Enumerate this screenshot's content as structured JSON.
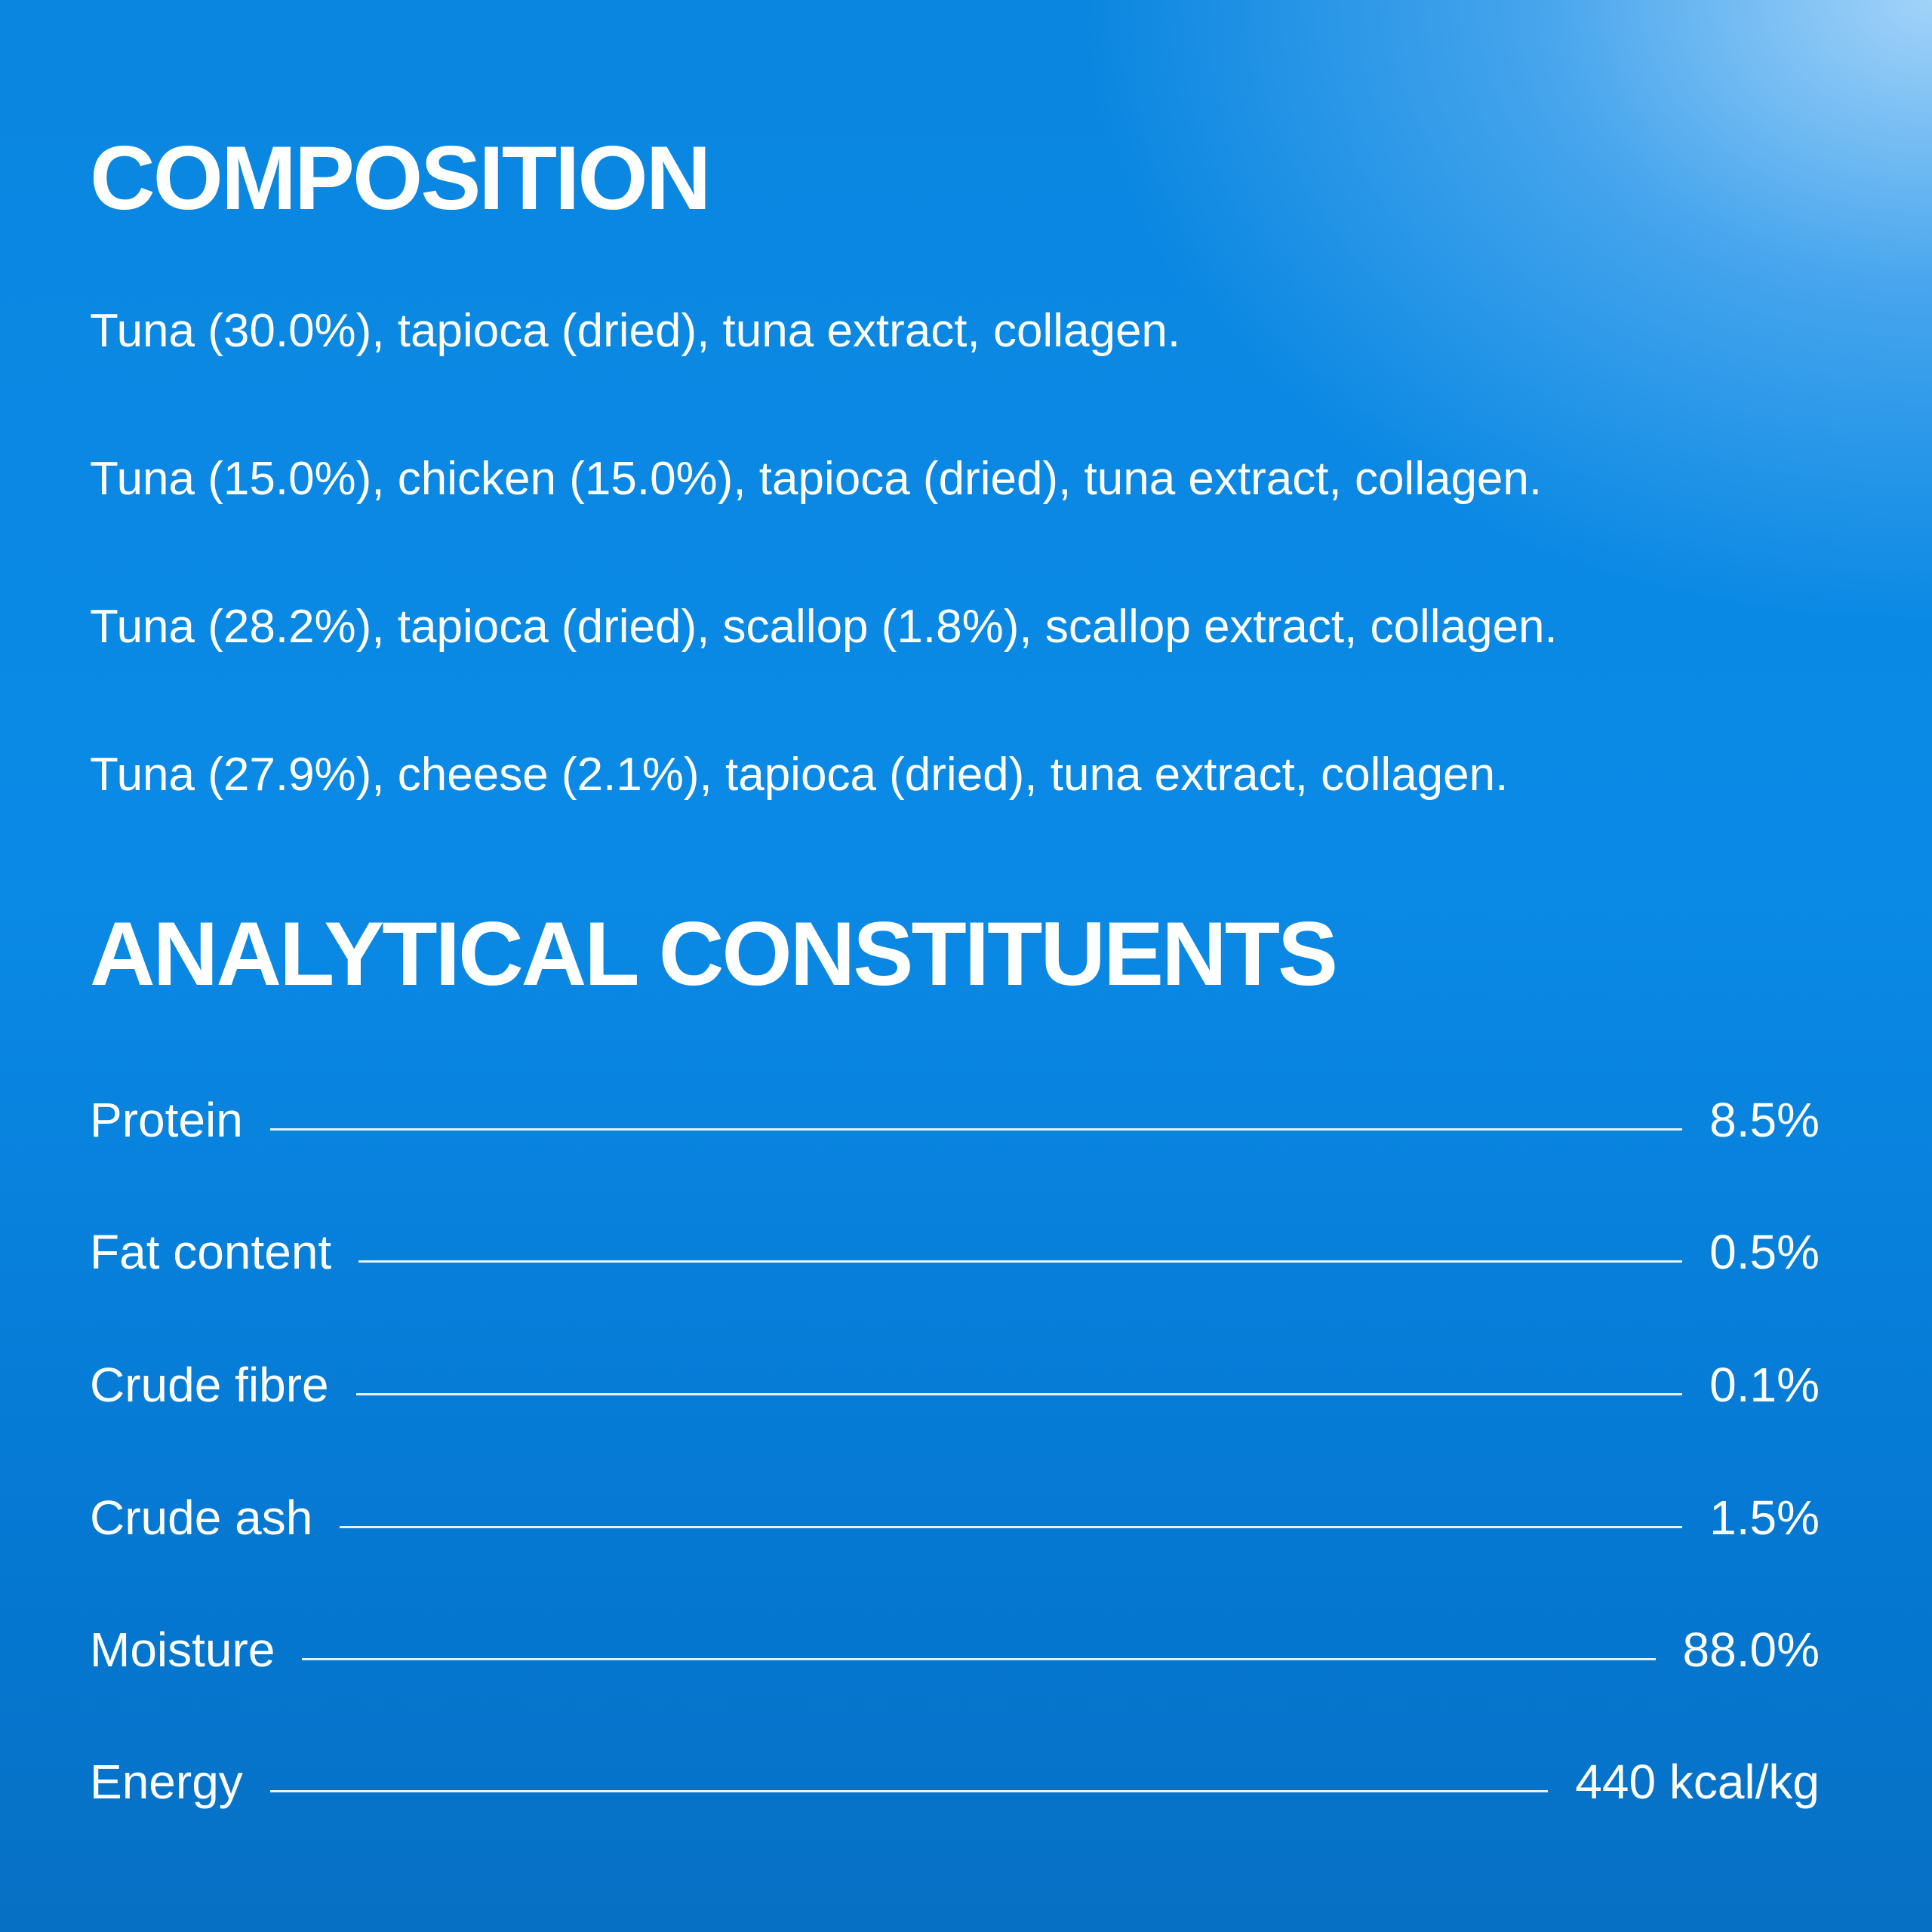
{
  "composition": {
    "title": "COMPOSITION",
    "lines": [
      "Tuna (30.0%), tapioca (dried), tuna extract, collagen.",
      "Tuna (15.0%), chicken (15.0%), tapioca (dried), tuna extract, collagen.",
      "Tuna (28.2%), tapioca (dried), scallop (1.8%), scallop extract, collagen.",
      "Tuna (27.9%), cheese (2.1%), tapioca (dried), tuna extract, collagen."
    ]
  },
  "analytical_constituents": {
    "title": "ANALYTICAL CONSTITUENTS",
    "rows": [
      {
        "label": "Protein",
        "value": "8.5%"
      },
      {
        "label": "Fat content",
        "value": "0.5%"
      },
      {
        "label": "Crude fibre",
        "value": "0.1%"
      },
      {
        "label": "Crude ash",
        "value": "1.5%"
      },
      {
        "label": "Moisture",
        "value": "88.0%"
      },
      {
        "label": "Energy",
        "value": "440 kcal/kg"
      }
    ]
  }
}
